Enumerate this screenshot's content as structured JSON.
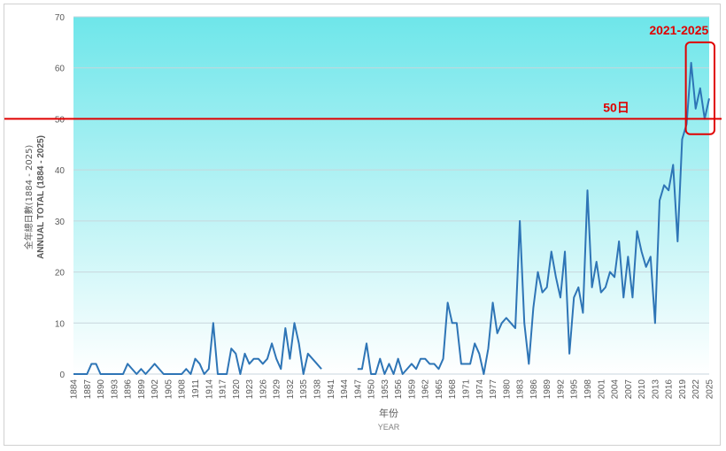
{
  "chart_data": {
    "type": "line",
    "ylabel_zh": "全年總日數(1884 - 2025)",
    "ylabel_en": "ANNUAL TOTAL (1884 - 2025)",
    "xlabel_zh": "年份",
    "xlabel_en": "YEAR",
    "ylim": [
      0,
      70
    ],
    "yticks": [
      0,
      10,
      20,
      30,
      40,
      50,
      60,
      70
    ],
    "xlim": [
      1884,
      2025
    ],
    "xticks": [
      "1884",
      "1887",
      "1890",
      "1893",
      "1896",
      "1899",
      "1902",
      "1905",
      "1908",
      "1911",
      "1914",
      "1917",
      "1920",
      "1923",
      "1926",
      "1929",
      "1932",
      "1935",
      "1938",
      "1941",
      "1944",
      "1947",
      "1950",
      "1953",
      "1956",
      "1959",
      "1962",
      "1965",
      "1968",
      "1971",
      "1974",
      "1977",
      "1980",
      "1983",
      "1986",
      "1989",
      "1992",
      "1995",
      "1998",
      "2001",
      "2004",
      "2007",
      "2010",
      "2013",
      "2016",
      "2019",
      "2022",
      "2025"
    ],
    "threshold": {
      "value": 50,
      "label": "50日",
      "color": "#e00000"
    },
    "highlight": {
      "label": "2021-2025",
      "from": 2021,
      "to": 2025,
      "color": "#e00000"
    },
    "line_color": "#2e75b6",
    "background": {
      "top": "#6ee6ea",
      "bottom": "#ffffff"
    },
    "grid": true,
    "series": [
      {
        "segments": [
          {
            "start": 1884,
            "values": [
              0,
              0,
              0,
              0,
              2,
              2,
              0,
              0,
              0,
              0,
              0,
              0,
              2,
              1,
              0,
              1,
              0,
              1,
              2,
              1,
              0,
              0,
              0,
              0,
              0,
              1,
              0,
              3,
              2,
              0,
              1,
              10,
              0,
              0,
              0,
              5,
              4,
              0,
              4,
              2,
              3,
              3,
              2,
              3,
              6,
              3,
              1,
              9,
              3,
              10,
              6,
              0,
              4,
              3,
              2,
              1
            ]
          },
          {
            "start": 1947,
            "values": [
              1,
              1,
              6,
              0,
              0,
              3,
              0,
              2,
              0,
              3,
              0,
              1,
              2,
              1,
              3,
              3,
              2,
              2,
              1,
              3,
              14,
              10,
              10,
              2,
              2,
              2,
              6,
              4,
              0,
              5,
              14,
              8,
              10,
              11,
              10,
              9,
              30,
              10,
              2,
              13,
              20,
              16,
              17,
              24,
              19,
              15,
              24,
              4,
              15,
              17,
              12,
              36,
              17,
              22,
              16,
              17,
              20,
              19,
              26,
              15,
              23,
              15,
              28,
              24,
              21,
              23,
              10,
              34,
              37,
              36,
              41,
              26,
              46,
              49,
              61,
              52,
              56,
              50,
              54
            ]
          }
        ]
      }
    ]
  }
}
